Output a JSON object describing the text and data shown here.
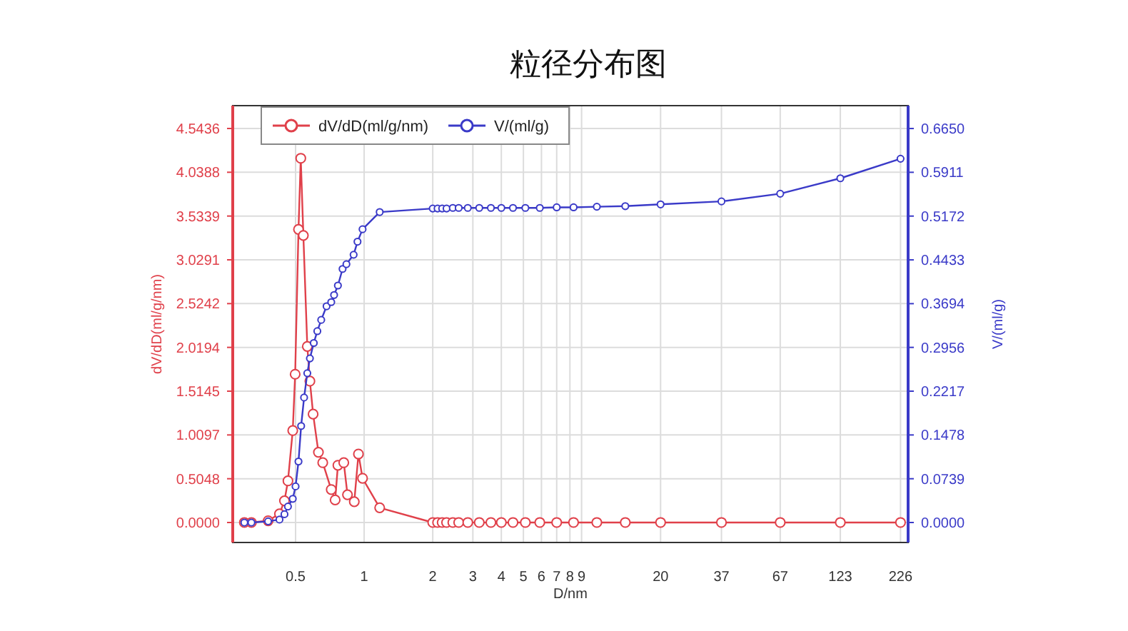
{
  "chart_data": {
    "type": "line",
    "title": "粒径分布图",
    "xlabel": "D/nm",
    "ylabel": "dV/dD(ml/g/nm)",
    "y2label": "V/(ml/g)",
    "log": "x",
    "grid": true,
    "legend": "top left",
    "marker": "circle",
    "line_style": "solid",
    "xlim": [
      0.265,
      244
    ],
    "xticks": [
      0.5,
      1,
      2,
      3,
      4,
      5,
      6,
      7,
      8,
      9,
      20,
      37,
      67,
      123,
      226
    ],
    "ylim": [
      -0.2305,
      4.807
    ],
    "yticks": [
      {
        "value": 0,
        "label": "0.0000"
      },
      0.5048,
      1.0097,
      1.5145,
      2.0194,
      2.5242,
      3.0291,
      3.5339,
      4.0388,
      4.5436
    ],
    "y2lim": [
      -0.0337,
      0.7036
    ],
    "y2ticks": [
      {
        "value": 0,
        "label": "0.0000"
      },
      0.0739,
      0.1478,
      0.2217,
      0.2956,
      0.3694,
      0.4433,
      0.5172,
      0.5911,
      {
        "value": 0.665,
        "label": "0.6650"
      }
    ],
    "series": [
      {
        "name": "dV/dD(ml/g/nm)",
        "color": "#e0404a",
        "x": [
          0.298,
          0.32,
          0.379,
          0.425,
          0.447,
          0.463,
          0.486,
          0.498,
          0.515,
          0.527,
          0.541,
          0.563,
          0.578,
          0.597,
          0.63,
          0.658,
          0.717,
          0.746,
          0.767,
          0.814,
          0.845,
          0.905,
          0.944,
          0.984,
          1.17,
          2.0,
          2.1,
          2.2,
          2.3,
          2.45,
          2.6,
          2.85,
          3.2,
          3.6,
          4.0,
          4.5,
          5.1,
          5.9,
          7.0,
          8.3,
          10.5,
          14,
          20,
          37,
          67,
          123,
          226
        ],
        "values": [
          0,
          0,
          0.02,
          0.1,
          0.25,
          0.48,
          1.06,
          1.71,
          3.38,
          4.2,
          3.31,
          2.03,
          1.63,
          1.25,
          0.81,
          0.69,
          0.38,
          0.26,
          0.66,
          0.69,
          0.32,
          0.24,
          0.79,
          0.51,
          0.17,
          0,
          0,
          0,
          0,
          0,
          0,
          0,
          0,
          0,
          0,
          0,
          0,
          0,
          0,
          0,
          0,
          0,
          0,
          0,
          0,
          0,
          0
        ]
      },
      {
        "name": "V/(ml/g)",
        "color": "#3a3ac8",
        "axis": "y2",
        "x": [
          0.298,
          0.32,
          0.379,
          0.425,
          0.447,
          0.463,
          0.486,
          0.5,
          0.515,
          0.529,
          0.545,
          0.563,
          0.578,
          0.601,
          0.623,
          0.648,
          0.684,
          0.717,
          0.738,
          0.767,
          0.804,
          0.836,
          0.899,
          0.935,
          0.984,
          1.17,
          2.0,
          2.1,
          2.2,
          2.3,
          2.45,
          2.6,
          2.85,
          3.2,
          3.6,
          4.0,
          4.5,
          5.1,
          5.9,
          7.0,
          8.3,
          10.5,
          14,
          20,
          37,
          67,
          123,
          226
        ],
        "values": [
          0,
          0,
          0.002,
          0.005,
          0.014,
          0.027,
          0.04,
          0.061,
          0.103,
          0.163,
          0.211,
          0.252,
          0.277,
          0.303,
          0.323,
          0.342,
          0.365,
          0.372,
          0.384,
          0.4,
          0.428,
          0.436,
          0.452,
          0.474,
          0.495,
          0.524,
          0.53,
          0.53,
          0.53,
          0.53,
          0.531,
          0.531,
          0.531,
          0.531,
          0.531,
          0.531,
          0.531,
          0.531,
          0.531,
          0.532,
          0.532,
          0.533,
          0.534,
          0.537,
          0.542,
          0.555,
          0.581,
          0.614
        ]
      }
    ]
  }
}
